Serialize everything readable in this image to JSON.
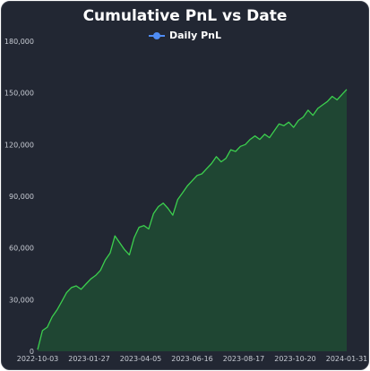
{
  "chart_data": {
    "type": "area",
    "title": "Cumulative PnL vs Date",
    "legend": {
      "position": "top-center",
      "entries": [
        "Daily PnL"
      ]
    },
    "xlabel": "",
    "ylabel": "",
    "grid": false,
    "x_ticks": [
      "2022-10-03",
      "2023-01-27",
      "2023-04-05",
      "2023-06-16",
      "2023-08-17",
      "2023-10-20",
      "2024-01-31"
    ],
    "y_ticks": [
      "0",
      "30,000",
      "60,000",
      "90,000",
      "120,000",
      "150,000",
      "180,000"
    ],
    "ylim": [
      0,
      180000
    ],
    "series": [
      {
        "name": "Daily PnL",
        "line_color": "#3ccf4e",
        "fill_color": "#1f4a33",
        "values": [
          1000,
          12000,
          14000,
          20000,
          24000,
          29000,
          34000,
          37000,
          38000,
          36000,
          39000,
          42000,
          44000,
          47000,
          53000,
          57000,
          67000,
          63000,
          59000,
          56000,
          66000,
          72000,
          73000,
          71000,
          80000,
          84000,
          86000,
          83000,
          79000,
          88000,
          92000,
          96000,
          99000,
          102000,
          103000,
          106000,
          109000,
          113000,
          110000,
          112000,
          117000,
          116000,
          119000,
          120000,
          123000,
          125000,
          123000,
          126000,
          124000,
          128000,
          132000,
          131000,
          133000,
          130000,
          134000,
          136000,
          140000,
          137000,
          141000,
          143000,
          145000,
          148000,
          146000,
          149000,
          152000
        ]
      }
    ]
  }
}
